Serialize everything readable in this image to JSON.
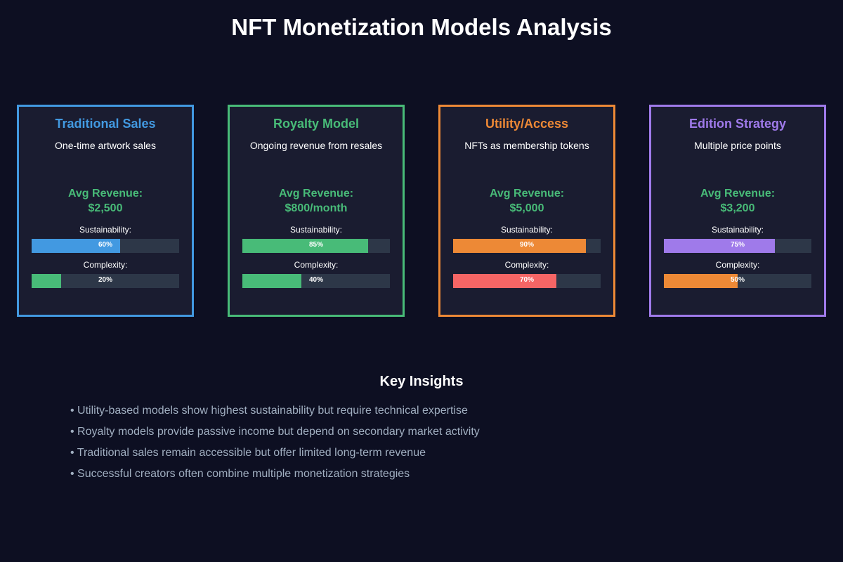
{
  "title": "NFT Monetization Models Analysis",
  "cards": [
    {
      "title": "Traditional Sales",
      "description": "One-time artwork sales",
      "revenue_label": "Avg Revenue:",
      "revenue_value": "$2,500",
      "accent": "#4299e1",
      "sustainability_label": "Sustainability:",
      "sustainability_value": 60,
      "sustainability_text": "60%",
      "sustainability_color": "#4299e1",
      "complexity_label": "Complexity:",
      "complexity_value": 20,
      "complexity_text": "20%",
      "complexity_color": "#48bb78"
    },
    {
      "title": "Royalty Model",
      "description": "Ongoing revenue from resales",
      "revenue_label": "Avg Revenue:",
      "revenue_value": "$800/month",
      "accent": "#48bb78",
      "sustainability_label": "Sustainability:",
      "sustainability_value": 85,
      "sustainability_text": "85%",
      "sustainability_color": "#48bb78",
      "complexity_label": "Complexity:",
      "complexity_value": 40,
      "complexity_text": "40%",
      "complexity_color": "#48bb78"
    },
    {
      "title": "Utility/Access",
      "description": "NFTs as membership tokens",
      "revenue_label": "Avg Revenue:",
      "revenue_value": "$5,000",
      "accent": "#ed8936",
      "sustainability_label": "Sustainability:",
      "sustainability_value": 90,
      "sustainability_text": "90%",
      "sustainability_color": "#ed8936",
      "complexity_label": "Complexity:",
      "complexity_value": 70,
      "complexity_text": "70%",
      "complexity_color": "#f56565"
    },
    {
      "title": "Edition Strategy",
      "description": "Multiple price points",
      "revenue_label": "Avg Revenue:",
      "revenue_value": "$3,200",
      "accent": "#9f7aea",
      "sustainability_label": "Sustainability:",
      "sustainability_value": 75,
      "sustainability_text": "75%",
      "sustainability_color": "#9f7aea",
      "complexity_label": "Complexity:",
      "complexity_value": 50,
      "complexity_text": "50%",
      "complexity_color": "#ed8936"
    }
  ],
  "insights": {
    "title": "Key Insights",
    "items": [
      "• Utility-based models show highest sustainability but require technical expertise",
      "• Royalty models provide passive income but depend on secondary market activity",
      "• Traditional sales remain accessible but offer limited long-term revenue",
      "• Successful creators often combine multiple monetization strategies"
    ]
  }
}
